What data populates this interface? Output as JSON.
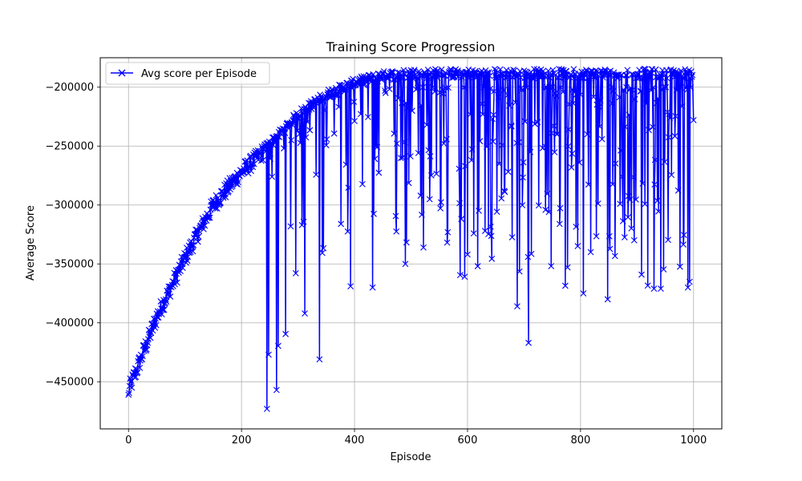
{
  "chart_data": {
    "type": "line",
    "title": "Training Score Progression",
    "xlabel": "Episode",
    "ylabel": "Average Score",
    "xlim": [
      -50,
      1050
    ],
    "ylim": [
      -490000,
      -175000
    ],
    "x_ticks": [
      0,
      200,
      400,
      600,
      800,
      1000
    ],
    "x_tick_labels": [
      "0",
      "200",
      "400",
      "600",
      "800",
      "1000"
    ],
    "y_ticks": [
      -450000,
      -400000,
      -350000,
      -300000,
      -250000,
      -200000
    ],
    "y_tick_labels": [
      "−450000",
      "−400000",
      "−350000",
      "−300000",
      "−250000",
      "−200000"
    ],
    "grid": true,
    "legend_position": "upper-left",
    "series": [
      {
        "name": "Avg score per Episode",
        "color": "#0000ff",
        "marker": "x",
        "n_points": 1000,
        "trend_knots_x": [
          0,
          50,
          100,
          150,
          200,
          250,
          300,
          350,
          400,
          450,
          500,
          1000
        ],
        "trend_knots_y": [
          -458000,
          -395000,
          -345000,
          -300000,
          -272000,
          -250000,
          -225000,
          -208000,
          -198000,
          -192000,
          -190000,
          -190000
        ],
        "notable_points": [
          {
            "x": 0,
            "y": -461000
          },
          {
            "x": 245,
            "y": -473000
          },
          {
            "x": 248,
            "y": -427000
          },
          {
            "x": 262,
            "y": -457000
          },
          {
            "x": 312,
            "y": -392000
          },
          {
            "x": 338,
            "y": -431000
          },
          {
            "x": 393,
            "y": -369000
          },
          {
            "x": 432,
            "y": -370000
          },
          {
            "x": 490,
            "y": -350000
          },
          {
            "x": 600,
            "y": -342000
          },
          {
            "x": 688,
            "y": -386000
          },
          {
            "x": 708,
            "y": -417000
          },
          {
            "x": 805,
            "y": -375000
          },
          {
            "x": 848,
            "y": -380000
          },
          {
            "x": 930,
            "y": -371000
          },
          {
            "x": 942,
            "y": -371000
          },
          {
            "x": 990,
            "y": -370000
          },
          {
            "x": 1000,
            "y": -228000
          }
        ]
      }
    ]
  }
}
